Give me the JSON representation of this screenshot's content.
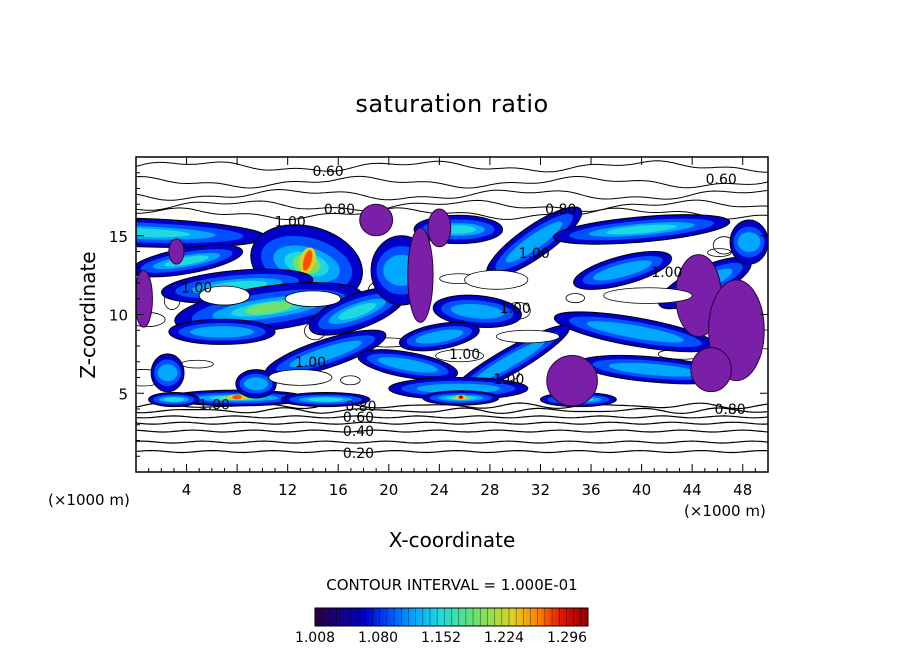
{
  "chart_data": {
    "type": "heatmap",
    "title": "saturation ratio",
    "xlabel": "X-coordinate",
    "ylabel": "Z-coordinate",
    "x_unit": "(×1000 m)",
    "xlim": [
      0,
      50
    ],
    "ylim": [
      0,
      20
    ],
    "x_ticks": [
      4,
      8,
      12,
      16,
      20,
      24,
      28,
      32,
      36,
      40,
      44,
      48
    ],
    "y_ticks": [
      5,
      10,
      15
    ],
    "contour_interval_text": "CONTOUR INTERVAL = 1.000E-01",
    "contour_labels": [
      {
        "text": "0.60",
        "x": 15.2,
        "z": 19.1
      },
      {
        "text": "0.60",
        "x": 46.3,
        "z": 18.6
      },
      {
        "text": "0.80",
        "x": 16.1,
        "z": 16.7
      },
      {
        "text": "0.80",
        "x": 33.6,
        "z": 16.7
      },
      {
        "text": "1.00",
        "x": 12.2,
        "z": 15.9
      },
      {
        "text": "1.00",
        "x": 31.5,
        "z": 13.9
      },
      {
        "text": "1.00",
        "x": 42.0,
        "z": 12.7
      },
      {
        "text": "1.00",
        "x": 4.8,
        "z": 11.7
      },
      {
        "text": "1.00",
        "x": 30.0,
        "z": 10.4
      },
      {
        "text": "1.00",
        "x": 26.0,
        "z": 7.5
      },
      {
        "text": "1.00",
        "x": 13.8,
        "z": 7.0
      },
      {
        "text": "1.00",
        "x": 29.5,
        "z": 5.9
      },
      {
        "text": "1.00",
        "x": 6.2,
        "z": 4.3
      },
      {
        "text": "0.80",
        "x": 17.8,
        "z": 4.2
      },
      {
        "text": "0.80",
        "x": 47.0,
        "z": 4.0
      },
      {
        "text": "0.60",
        "x": 17.6,
        "z": 3.5
      },
      {
        "text": "0.40",
        "x": 17.6,
        "z": 2.6
      },
      {
        "text": "0.20",
        "x": 17.6,
        "z": 1.2
      }
    ],
    "colorbar": {
      "min": 1.008,
      "max": 1.32,
      "tick_labels": [
        "1.008",
        "1.080",
        "1.152",
        "1.224",
        "1.296"
      ],
      "colors": [
        "#2b0040",
        "#140080",
        "#0000c8",
        "#0050ff",
        "#00a8ff",
        "#20d8e0",
        "#50e090",
        "#90e050",
        "#e0d020",
        "#ff8000",
        "#e01000",
        "#900000"
      ]
    },
    "blobs": [
      {
        "x": 0.3,
        "z": 15.2,
        "rx": 10.0,
        "rz": 0.9,
        "ang": -2,
        "lvl": 0.45
      },
      {
        "x": 4.0,
        "z": 13.4,
        "rx": 4.5,
        "rz": 0.8,
        "ang": 10,
        "lvl": 0.35
      },
      {
        "x": 13.5,
        "z": 13.2,
        "rx": 4.5,
        "rz": 2.4,
        "ang": -15,
        "lvl": 0.6
      },
      {
        "x": 8.0,
        "z": 11.8,
        "rx": 6.0,
        "rz": 1.0,
        "ang": 5,
        "lvl": 0.4
      },
      {
        "x": 10.5,
        "z": 10.4,
        "rx": 7.5,
        "rz": 1.4,
        "ang": 8,
        "lvl": 0.5
      },
      {
        "x": 17.5,
        "z": 10.2,
        "rx": 4.0,
        "rz": 1.1,
        "ang": 20,
        "lvl": 0.35
      },
      {
        "x": 6.8,
        "z": 8.9,
        "rx": 4.2,
        "rz": 0.8,
        "ang": 0,
        "lvl": 0.3
      },
      {
        "x": 15.0,
        "z": 7.5,
        "rx": 5.0,
        "rz": 0.9,
        "ang": 18,
        "lvl": 0.3
      },
      {
        "x": 21.0,
        "z": 12.8,
        "rx": 2.4,
        "rz": 2.2,
        "ang": 0,
        "lvl": 0.3
      },
      {
        "x": 25.5,
        "z": 15.4,
        "rx": 3.5,
        "rz": 0.9,
        "ang": 0,
        "lvl": 0.35
      },
      {
        "x": 31.5,
        "z": 14.6,
        "rx": 4.5,
        "rz": 1.0,
        "ang": 35,
        "lvl": 0.3
      },
      {
        "x": 27.0,
        "z": 10.2,
        "rx": 3.5,
        "rz": 1.0,
        "ang": -5,
        "lvl": 0.3
      },
      {
        "x": 24.0,
        "z": 8.6,
        "rx": 3.2,
        "rz": 0.8,
        "ang": 10,
        "lvl": 0.25
      },
      {
        "x": 40.0,
        "z": 15.4,
        "rx": 7.0,
        "rz": 0.8,
        "ang": 5,
        "lvl": 0.4
      },
      {
        "x": 38.5,
        "z": 12.8,
        "rx": 4.0,
        "rz": 0.9,
        "ang": 15,
        "lvl": 0.3
      },
      {
        "x": 45.0,
        "z": 12.0,
        "rx": 4.0,
        "rz": 1.0,
        "ang": 25,
        "lvl": 0.3
      },
      {
        "x": 39.5,
        "z": 8.9,
        "rx": 6.5,
        "rz": 0.9,
        "ang": -10,
        "lvl": 0.3
      },
      {
        "x": 29.5,
        "z": 7.0,
        "rx": 5.5,
        "rz": 0.8,
        "ang": 30,
        "lvl": 0.3
      },
      {
        "x": 21.5,
        "z": 6.8,
        "rx": 4.0,
        "rz": 0.8,
        "ang": -10,
        "lvl": 0.3
      },
      {
        "x": 41.0,
        "z": 6.5,
        "rx": 6.0,
        "rz": 0.8,
        "ang": -5,
        "lvl": 0.3
      },
      {
        "x": 25.5,
        "z": 5.3,
        "rx": 5.5,
        "rz": 0.7,
        "ang": 0,
        "lvl": 0.3
      },
      {
        "x": 8.0,
        "z": 4.7,
        "rx": 5.5,
        "rz": 0.5,
        "ang": 0,
        "lvl": 0.6
      },
      {
        "x": 25.7,
        "z": 4.7,
        "rx": 3.0,
        "rz": 0.45,
        "ang": 0,
        "lvl": 0.7
      },
      {
        "x": 35.0,
        "z": 4.6,
        "rx": 3.0,
        "rz": 0.45,
        "ang": 0,
        "lvl": 0.7
      },
      {
        "x": 15.0,
        "z": 4.6,
        "rx": 3.5,
        "rz": 0.45,
        "ang": 0,
        "lvl": 0.35
      },
      {
        "x": 3.0,
        "z": 4.6,
        "rx": 2.0,
        "rz": 0.45,
        "ang": 0,
        "lvl": 0.35
      },
      {
        "x": 2.5,
        "z": 6.3,
        "rx": 1.3,
        "rz": 1.2,
        "ang": 0,
        "lvl": 0.25
      },
      {
        "x": 9.5,
        "z": 5.6,
        "rx": 1.6,
        "rz": 0.9,
        "ang": 0,
        "lvl": 0.3
      },
      {
        "x": 48.5,
        "z": 14.6,
        "rx": 1.5,
        "rz": 1.4,
        "ang": 0,
        "lvl": 0.3
      }
    ],
    "purple_regions": [
      {
        "x": 19.0,
        "z": 16.0,
        "rx": 1.3,
        "rz": 1.0
      },
      {
        "x": 22.5,
        "z": 12.5,
        "rx": 1.0,
        "rz": 3.0
      },
      {
        "x": 24.0,
        "z": 15.5,
        "rx": 0.9,
        "rz": 1.2
      },
      {
        "x": 34.5,
        "z": 5.8,
        "rx": 2.0,
        "rz": 1.6
      },
      {
        "x": 44.5,
        "z": 11.2,
        "rx": 1.8,
        "rz": 2.6
      },
      {
        "x": 47.5,
        "z": 9.0,
        "rx": 2.2,
        "rz": 3.2
      },
      {
        "x": 0.6,
        "z": 11.0,
        "rx": 0.7,
        "rz": 1.8
      },
      {
        "x": 3.2,
        "z": 14.0,
        "rx": 0.6,
        "rz": 0.8
      },
      {
        "x": 45.5,
        "z": 6.5,
        "rx": 1.6,
        "rz": 1.4
      }
    ]
  }
}
